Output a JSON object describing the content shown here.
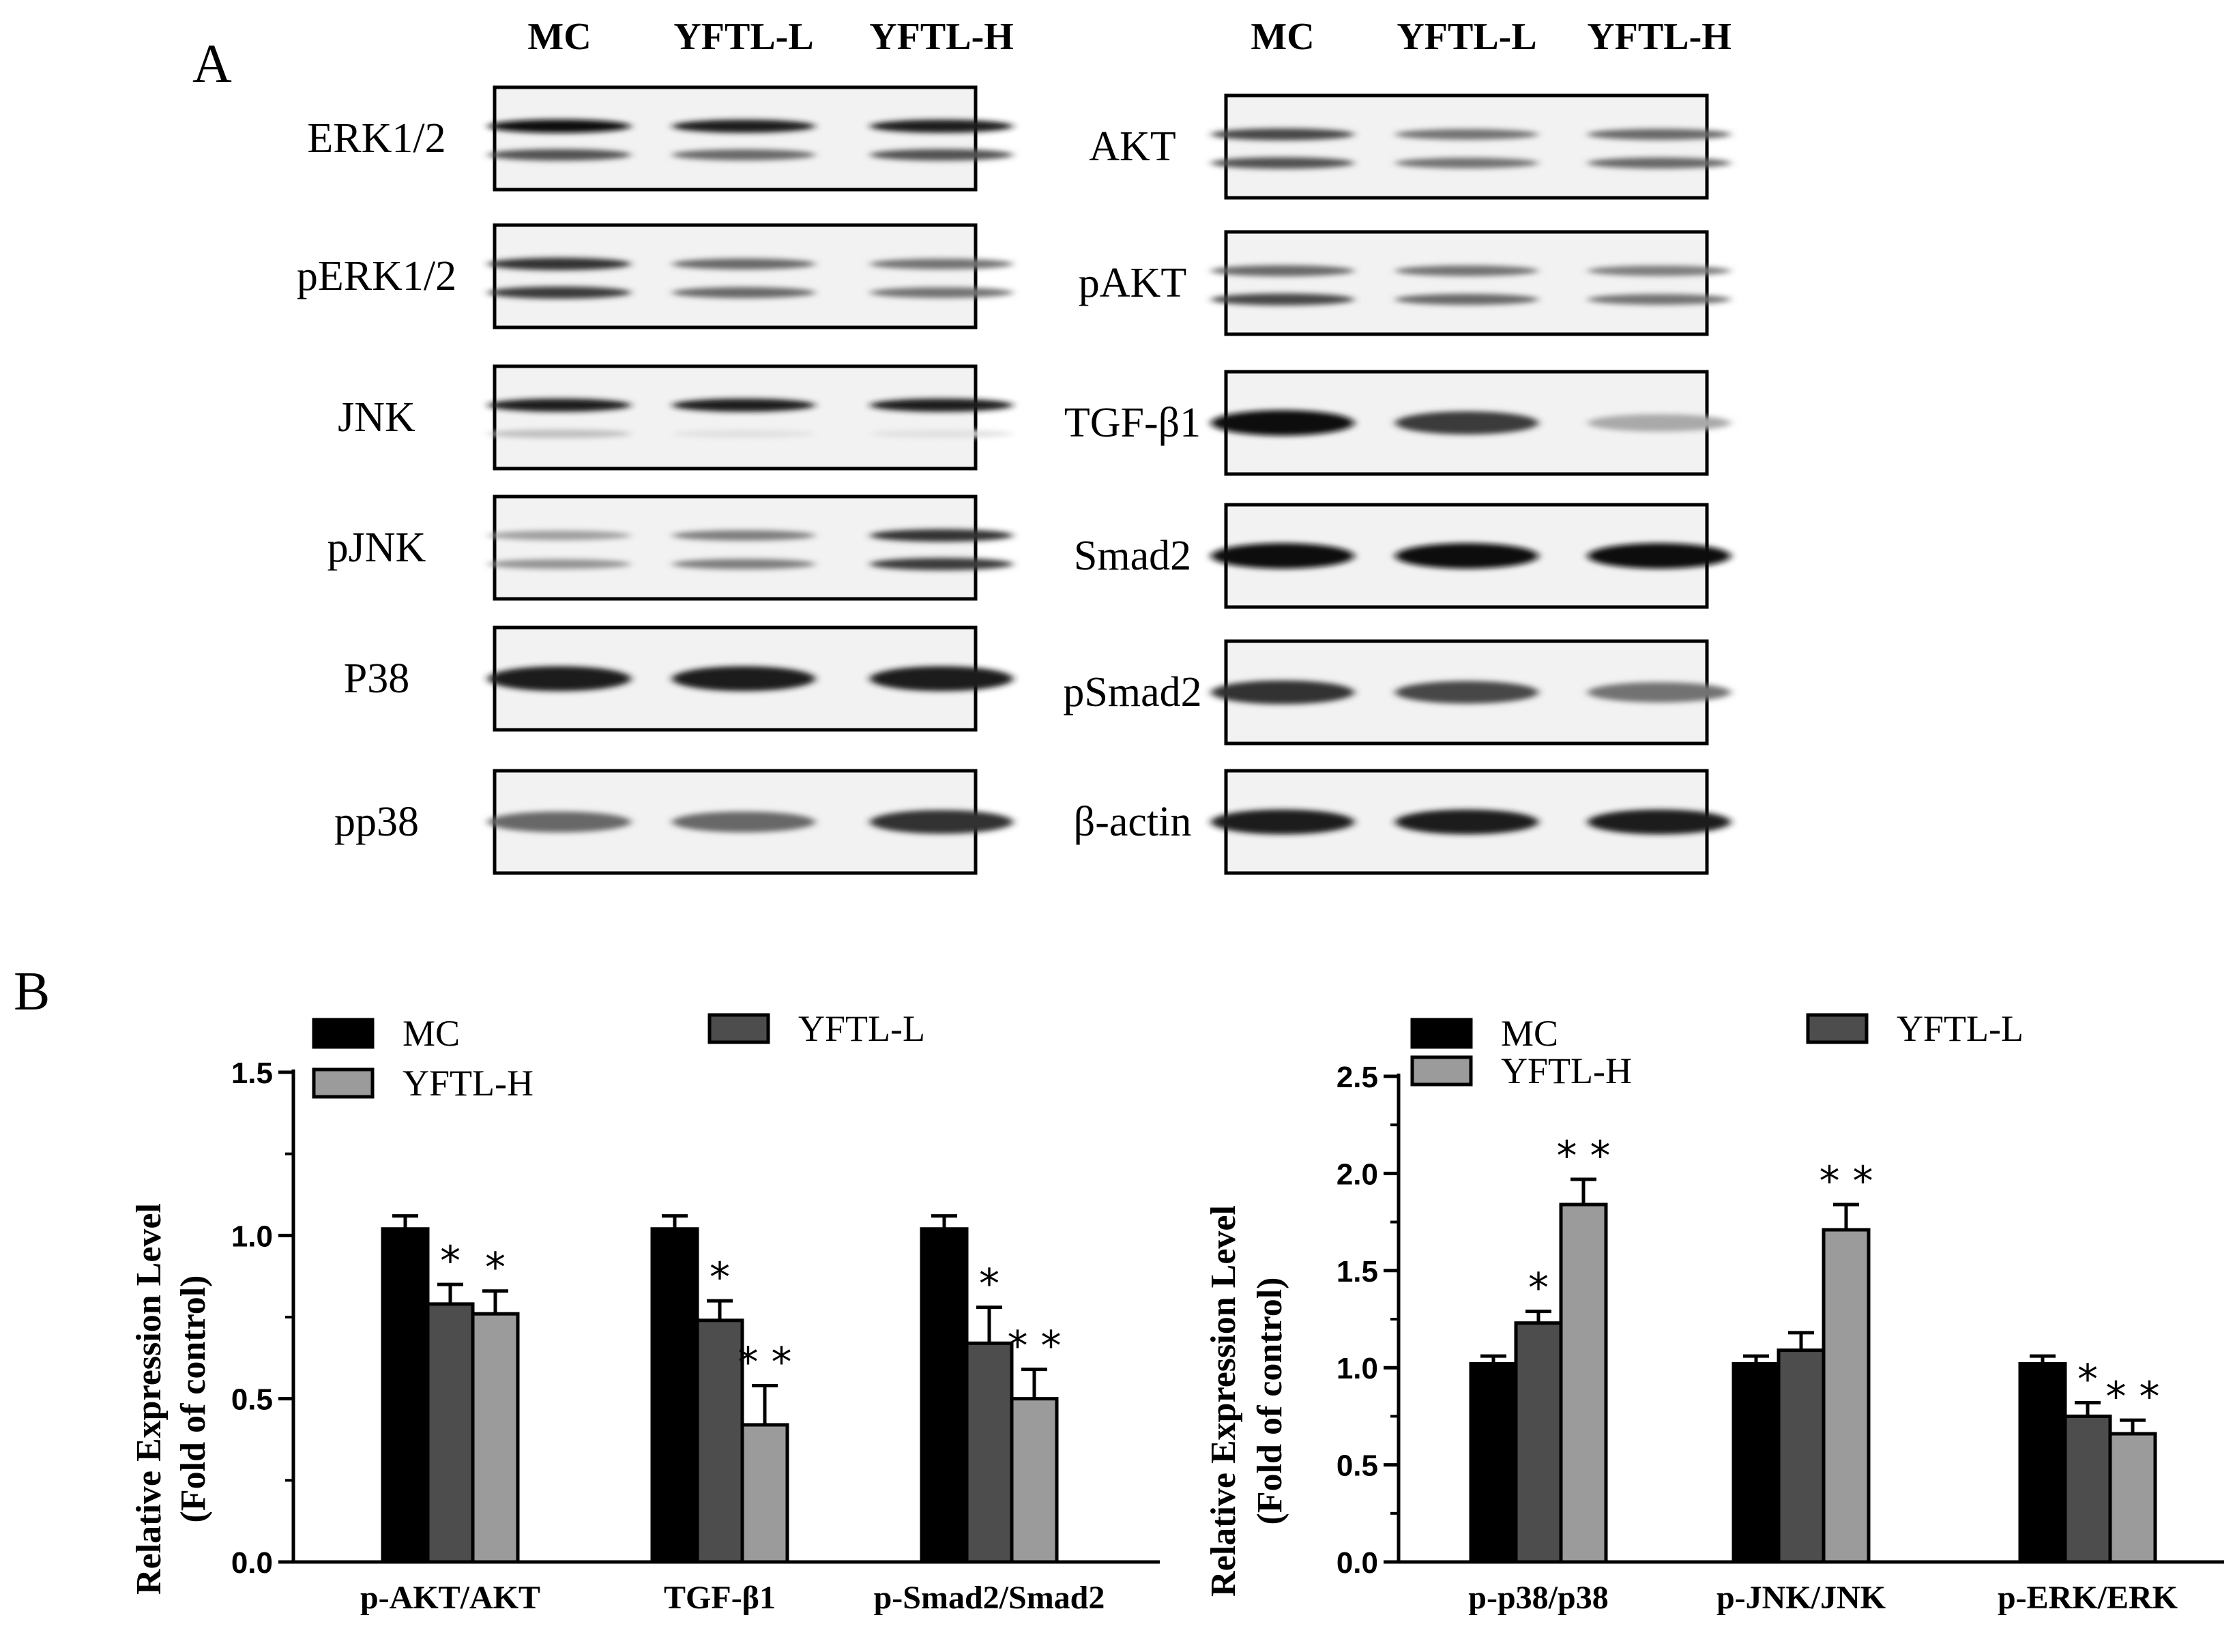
{
  "panel_a": {
    "letter": "A",
    "lanes": [
      "MC",
      "YFTL-L",
      "YFTL-H"
    ],
    "left_blots": [
      {
        "label": "ERK1/2",
        "bands": [
          [
            1.0,
            0.95,
            0.95
          ],
          [
            0.7,
            0.6,
            0.7
          ]
        ]
      },
      {
        "label": "pERK1/2",
        "bands": [
          [
            0.85,
            0.6,
            0.55
          ],
          [
            0.8,
            0.6,
            0.55
          ]
        ]
      },
      {
        "label": "JNK",
        "bands": [
          [
            0.95,
            0.95,
            0.95
          ],
          [
            0.2,
            0.05,
            0.05
          ]
        ]
      },
      {
        "label": "pJNK",
        "bands": [
          [
            0.35,
            0.5,
            0.85
          ],
          [
            0.4,
            0.5,
            0.8
          ]
        ]
      },
      {
        "label": "P38",
        "bands": [
          [
            0.95,
            0.95,
            0.95
          ]
        ]
      },
      {
        "label": "pp38",
        "bands": [
          [
            0.6,
            0.6,
            0.85
          ]
        ]
      }
    ],
    "right_blots": [
      {
        "label": "AKT",
        "bands": [
          [
            0.75,
            0.55,
            0.6
          ],
          [
            0.7,
            0.55,
            0.6
          ]
        ]
      },
      {
        "label": "pAKT",
        "bands": [
          [
            0.6,
            0.55,
            0.5
          ],
          [
            0.75,
            0.6,
            0.55
          ]
        ]
      },
      {
        "label": "TGF-β1",
        "bands": [
          [
            1.0,
            0.8,
            0.3
          ]
        ]
      },
      {
        "label": "Smad2",
        "bands": [
          [
            1.0,
            1.0,
            1.0
          ]
        ]
      },
      {
        "label": "pSmad2",
        "bands": [
          [
            0.85,
            0.75,
            0.55
          ]
        ]
      },
      {
        "label": "β-actin",
        "bands": [
          [
            0.95,
            0.95,
            0.95
          ]
        ]
      }
    ]
  },
  "panel_b": {
    "letter": "B"
  },
  "colors": {
    "MC": "#000000",
    "YFTL-L": "#4d4d4d",
    "YFTL-H": "#9b9b9b"
  },
  "chart_data": [
    {
      "type": "bar",
      "ylabel": "Relative Expression Level",
      "ylabel2": "(Fold of control)",
      "ylim": [
        0,
        1.5
      ],
      "yticks": [
        "0.0",
        "0.5",
        "1.0",
        "1.5"
      ],
      "categories": [
        "p-AKT/AKT",
        "TGF-β1",
        "p-Smad2/Smad2"
      ],
      "series": [
        {
          "name": "MC",
          "values": [
            1.02,
            1.02,
            1.02
          ],
          "errors": [
            0.04,
            0.04,
            0.04
          ],
          "sig": [
            "",
            "",
            ""
          ]
        },
        {
          "name": "YFTL-L",
          "values": [
            0.79,
            0.74,
            0.67
          ],
          "errors": [
            0.06,
            0.06,
            0.11
          ],
          "sig": [
            "*",
            "*",
            "*"
          ]
        },
        {
          "name": "YFTL-H",
          "values": [
            0.76,
            0.42,
            0.5
          ],
          "errors": [
            0.07,
            0.12,
            0.09
          ],
          "sig": [
            "*",
            "* *",
            "* *"
          ]
        }
      ],
      "legend": "top"
    },
    {
      "type": "bar",
      "ylabel": "Relative Expression Level",
      "ylabel2": "(Fold of control)",
      "ylim": [
        0,
        2.5
      ],
      "yticks": [
        "0.0",
        "0.5",
        "1.0",
        "1.5",
        "2.0",
        "2.5"
      ],
      "categories": [
        "p-p38/p38",
        "p-JNK/JNK",
        "p-ERK/ERK"
      ],
      "series": [
        {
          "name": "MC",
          "values": [
            1.02,
            1.02,
            1.02
          ],
          "errors": [
            0.04,
            0.04,
            0.04
          ],
          "sig": [
            "",
            "",
            ""
          ]
        },
        {
          "name": "YFTL-L",
          "values": [
            1.23,
            1.09,
            0.75
          ],
          "errors": [
            0.06,
            0.09,
            0.07
          ],
          "sig": [
            "*",
            "",
            "*"
          ]
        },
        {
          "name": "YFTL-H",
          "values": [
            1.84,
            1.71,
            0.66
          ],
          "errors": [
            0.13,
            0.13,
            0.07
          ],
          "sig": [
            "* *",
            "* *",
            "* *"
          ]
        }
      ],
      "legend": "top"
    }
  ]
}
